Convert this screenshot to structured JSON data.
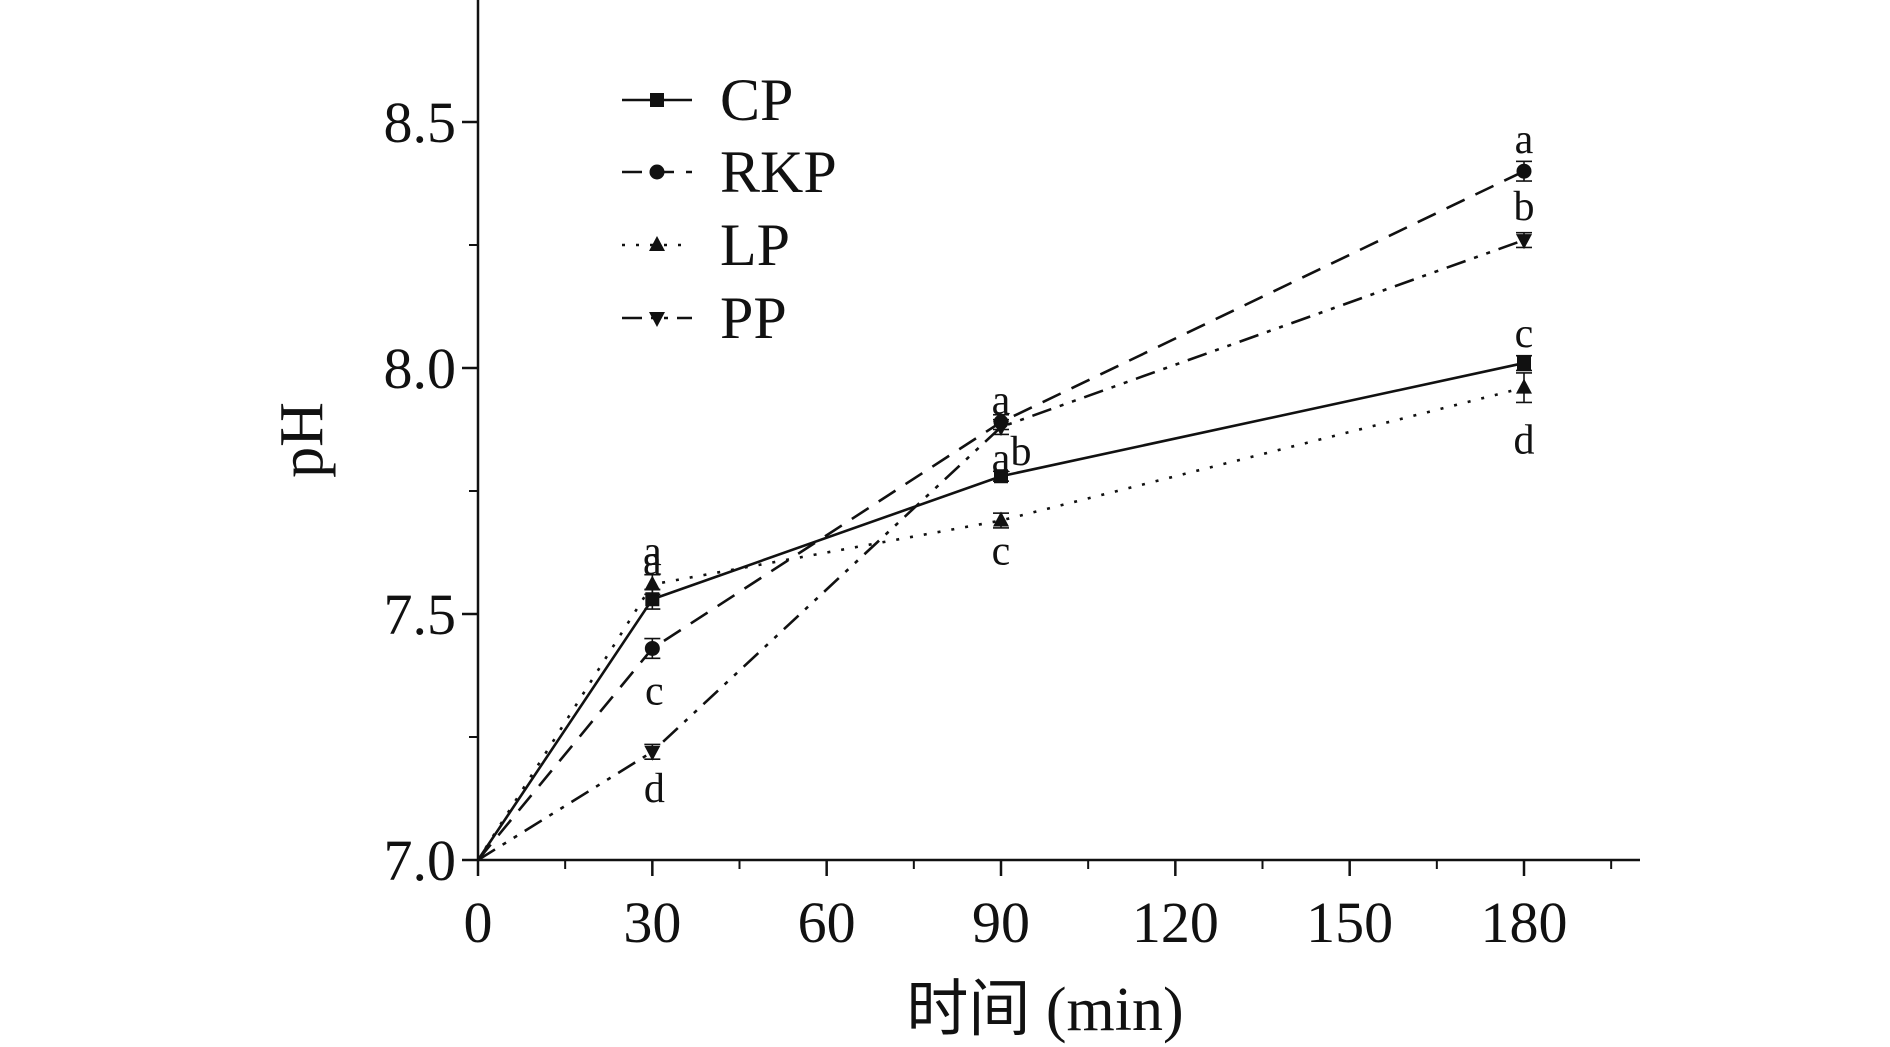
{
  "chart_data": {
    "type": "line",
    "title": "",
    "xlabel": "时间 (min)",
    "ylabel": "pH",
    "x": [
      0,
      30,
      90,
      180
    ],
    "xlim": [
      0,
      200
    ],
    "ylim": [
      7.0,
      8.75
    ],
    "xticks": [
      0,
      30,
      60,
      90,
      120,
      150,
      180
    ],
    "yticks": [
      7.0,
      7.5,
      8.0,
      8.5
    ],
    "ytick_labels": [
      "7.0",
      "7.5",
      "8.0",
      "8.5"
    ],
    "grid": false,
    "legend_position": "top-left",
    "series": [
      {
        "name": "CP",
        "dash": "solid",
        "marker": "square",
        "values": [
          7.0,
          7.53,
          7.78,
          8.01
        ],
        "labels": [
          "",
          "a",
          "a",
          "c"
        ],
        "errors": [
          0,
          0.02,
          0.01,
          0.015
        ]
      },
      {
        "name": "RKP",
        "dash": "dashed",
        "marker": "circle",
        "values": [
          7.0,
          7.43,
          7.89,
          8.4
        ],
        "labels": [
          "",
          "c",
          "a",
          "a"
        ],
        "errors": [
          0,
          0.02,
          0.015,
          0.02
        ]
      },
      {
        "name": "LP",
        "dash": "dotted",
        "marker": "triangle-up",
        "values": [
          7.0,
          7.56,
          7.69,
          7.96
        ],
        "labels": [
          "",
          "a",
          "c",
          "d"
        ],
        "errors": [
          0,
          0.02,
          0.015,
          0.03
        ]
      },
      {
        "name": "PP",
        "dash": "dash-dot-dot",
        "marker": "triangle-down",
        "values": [
          7.0,
          7.22,
          7.88,
          8.26
        ],
        "labels": [
          "",
          "d",
          "b",
          "b"
        ],
        "errors": [
          0,
          0.015,
          0.015,
          0.015
        ]
      }
    ]
  }
}
